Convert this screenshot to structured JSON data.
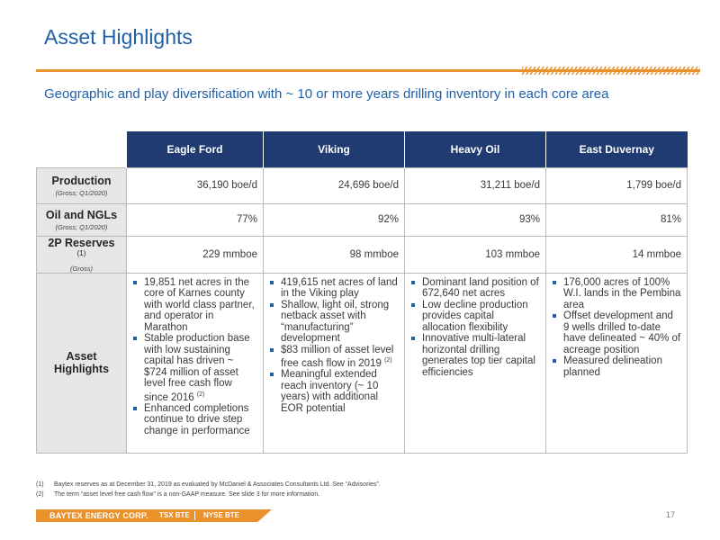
{
  "title": "Asset Highlights",
  "subtitle": "Geographic and play diversification with ~ 10 or more years drilling inventory in each core area",
  "table": {
    "columns": [
      "Eagle Ford",
      "Viking",
      "Heavy Oil",
      "East Duvernay"
    ],
    "production": {
      "label": "Production",
      "sub": "(Gross; Q1/2020)",
      "values": [
        "36,190 boe/d",
        "24,696 boe/d",
        "31,211 boe/d",
        "1,799 boe/d"
      ]
    },
    "oil_ngls": {
      "label": "Oil and NGLs",
      "sub": "(Gross; Q1/2020)",
      "values": [
        "77%",
        "92%",
        "93%",
        "81%"
      ]
    },
    "reserves": {
      "label": "2P Reserves",
      "sup": "(1)",
      "sub": "(Gross)",
      "values": [
        "229 mmboe",
        "98 mmboe",
        "103 mmboe",
        "14 mmboe"
      ]
    },
    "highlights": {
      "label": "Asset Highlights",
      "eagle_ford": [
        "19,851 net acres in the core of Karnes county with world class partner, and operator in Marathon",
        "Stable production base with low sustaining capital has driven ~ $724 million of asset level free cash flow since 2016",
        "Enhanced completions continue to drive step change in performance"
      ],
      "eagle_ford_sup": "(2)",
      "viking": [
        "419,615 net acres of land in the Viking play",
        "Shallow, light oil, strong netback asset with “manufacturing” development",
        "$83 million of asset level free cash flow in 2019",
        "Meaningful extended reach inventory (~ 10 years) with additional EOR potential"
      ],
      "viking_sup": "(2)",
      "heavy_oil": [
        "Dominant land position of 672,640 net acres",
        "Low decline production provides capital allocation flexibility",
        "Innovative multi-lateral horizontal drilling generates top tier capital efficiencies"
      ],
      "east_duvernay": [
        "176,000 acres of 100% W.I. lands in the Pembina area",
        "Offset development and 9 wells drilled to-date have delineated ~ 40% of acreage position",
        "Measured delineation planned"
      ]
    }
  },
  "footnotes": [
    {
      "num": "(1)",
      "text": "Baytex reserves as at December 31, 2019 as evaluated by McDaniel & Associates Consultants Ltd. See “Advisories”."
    },
    {
      "num": "(2)",
      "text": "The term “asset level free cash flow” is a non-GAAP measure. See slide 3 for more information."
    }
  ],
  "footer": {
    "company": "BAYTEX ENERGY CORP.",
    "tsx": "TSX BTE",
    "nyse": "NYSE BTE",
    "page": "17"
  },
  "colors": {
    "brand_blue": "#1f5fa8",
    "header_navy": "#1f3b72",
    "accent_orange": "#e9922b",
    "label_grey": "#e6e6e6"
  }
}
